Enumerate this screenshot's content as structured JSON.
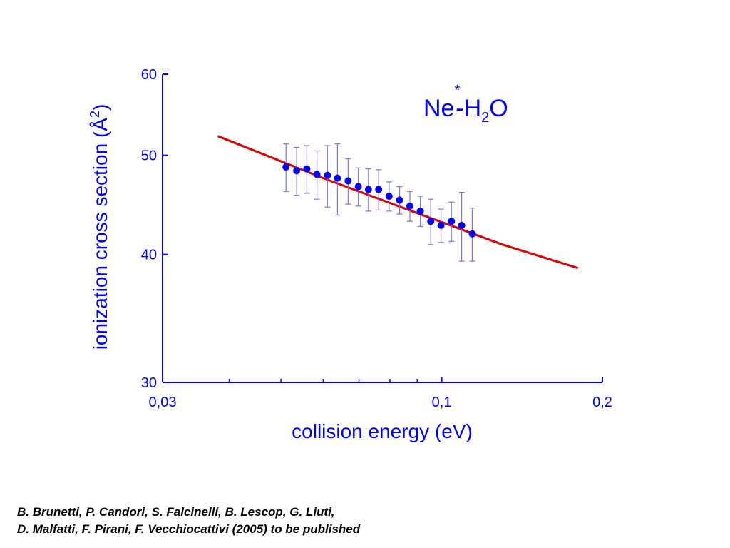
{
  "chart_data": {
    "type": "scatter",
    "title": "",
    "xlabel": "collision energy (eV)",
    "ylabel_parts": [
      "ionization cross section (Å",
      "2",
      ")"
    ],
    "annotation": {
      "parts": [
        "Ne",
        "*",
        "-H",
        "2",
        "O"
      ]
    },
    "x_scale": "log",
    "y_scale": "log",
    "xlim": [
      0.03,
      0.2
    ],
    "ylim": [
      30,
      60
    ],
    "x_tick_labels": [
      {
        "value": 0.03,
        "label": "0,03"
      },
      {
        "value": 0.1,
        "label": "0,1"
      },
      {
        "value": 0.2,
        "label": "0,2"
      }
    ],
    "x_minor_ticks": [
      0.04,
      0.05,
      0.06,
      0.07,
      0.08,
      0.09
    ],
    "y_tick_labels": [
      {
        "value": 30,
        "label": "30"
      },
      {
        "value": 40,
        "label": "40"
      },
      {
        "value": 50,
        "label": "50"
      },
      {
        "value": 60,
        "label": "60"
      }
    ],
    "grid": false,
    "colors": {
      "axis": "#0000ff",
      "points": "#0000ff",
      "errorbars": "#7777dd",
      "fit": "#e00000"
    },
    "series": [
      {
        "kind": "points_with_errorbars",
        "points": [
          {
            "x": 0.0511,
            "y": 48.7,
            "err": 2.6
          },
          {
            "x": 0.0535,
            "y": 48.3,
            "err": 2.6
          },
          {
            "x": 0.0559,
            "y": 48.5,
            "err": 2.6
          },
          {
            "x": 0.0584,
            "y": 47.9,
            "err": 2.6
          },
          {
            "x": 0.0611,
            "y": 47.8,
            "err": 3.3
          },
          {
            "x": 0.0638,
            "y": 47.5,
            "err": 3.8
          },
          {
            "x": 0.0668,
            "y": 47.2,
            "err": 2.4
          },
          {
            "x": 0.0698,
            "y": 46.6,
            "err": 2.0
          },
          {
            "x": 0.0729,
            "y": 46.3,
            "err": 2.2
          },
          {
            "x": 0.0762,
            "y": 46.3,
            "err": 2.1
          },
          {
            "x": 0.0797,
            "y": 45.6,
            "err": 1.5
          },
          {
            "x": 0.0834,
            "y": 45.2,
            "err": 1.4
          },
          {
            "x": 0.0872,
            "y": 44.6,
            "err": 1.5
          },
          {
            "x": 0.0912,
            "y": 44.1,
            "err": 1.5
          },
          {
            "x": 0.0954,
            "y": 43.1,
            "err": 2.2
          },
          {
            "x": 0.0997,
            "y": 42.7,
            "err": 1.6
          },
          {
            "x": 0.1043,
            "y": 43.1,
            "err": 1.9
          },
          {
            "x": 0.109,
            "y": 42.7,
            "err": 3.3
          },
          {
            "x": 0.1141,
            "y": 41.9,
            "err": 2.5
          }
        ]
      },
      {
        "kind": "fit_line",
        "points": [
          {
            "x": 0.0381,
            "y": 52.2
          },
          {
            "x": 0.06,
            "y": 47.5
          },
          {
            "x": 0.09,
            "y": 43.9
          },
          {
            "x": 0.13,
            "y": 40.9
          },
          {
            "x": 0.18,
            "y": 38.8
          }
        ]
      }
    ]
  },
  "citation": {
    "line1": "B. Brunetti, P. Candori, S. Falcinelli, B. Lescop, G. Liuti,",
    "line2": "D. Malfatti, F. Pirani, F. Vecchiocattivi (2005) to be published"
  }
}
